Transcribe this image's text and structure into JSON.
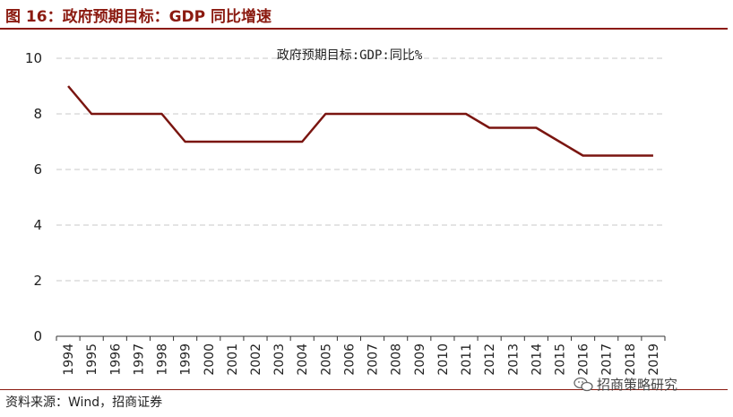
{
  "figure": {
    "title": "图 16：政府预期目标：GDP 同比增速",
    "source": "资料来源：Wind，招商证券",
    "watermark": "招商策略研究",
    "watermark_icon": "wechat-icon"
  },
  "colors": {
    "accent": "#8b1a10",
    "line": "#7a1510",
    "grid": "#c8c8c8"
  },
  "chart_data": {
    "type": "line",
    "title": "政府预期目标:GDP:同比%",
    "xlabel": "",
    "ylabel": "",
    "ylim": [
      0,
      10
    ],
    "yticks": [
      0,
      2,
      4,
      6,
      8,
      10
    ],
    "grid": true,
    "grid_style": "dashed-horizontal",
    "categories": [
      "1994",
      "1995",
      "1996",
      "1997",
      "1998",
      "1999",
      "2000",
      "2001",
      "2002",
      "2003",
      "2004",
      "2005",
      "2006",
      "2007",
      "2008",
      "2009",
      "2010",
      "2011",
      "2012",
      "2013",
      "2014",
      "2015",
      "2016",
      "2017",
      "2018",
      "2019"
    ],
    "series": [
      {
        "values": [
          9,
          8,
          8,
          8,
          8,
          7,
          7,
          7,
          7,
          7,
          7,
          8,
          8,
          8,
          8,
          8,
          8,
          8,
          7.5,
          7.5,
          7.5,
          7,
          6.5,
          6.5,
          6.5,
          6.5
        ]
      }
    ]
  }
}
